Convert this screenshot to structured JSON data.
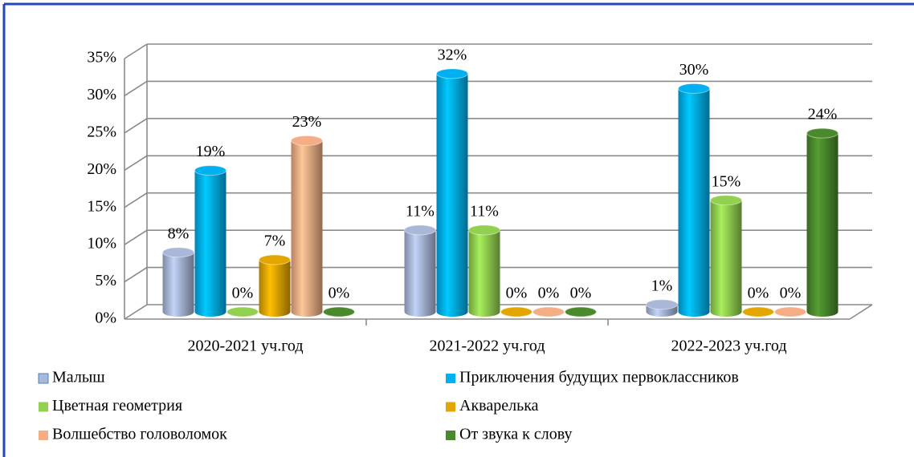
{
  "chart_data": {
    "type": "bar3d",
    "categories": [
      "2020-2021 уч.год",
      "2021-2022 уч.год",
      "2022-2023 уч.год"
    ],
    "series": [
      {
        "name": "Малыш",
        "color": "#a9b8d8",
        "values": [
          8,
          11,
          1
        ],
        "value_labels": [
          "8%",
          "11%",
          "1%"
        ]
      },
      {
        "name": "Приключения будущих первоклассников",
        "color": "#00b0f0",
        "values": [
          19,
          32,
          30
        ],
        "value_labels": [
          "19%",
          "32%",
          "30%"
        ]
      },
      {
        "name": "Цветная геометрия",
        "color": "#92d050",
        "values": [
          0,
          11,
          15
        ],
        "value_labels": [
          "0%",
          "11%",
          "15%"
        ]
      },
      {
        "name": "Акварелька",
        "color": "#e3a600",
        "values": [
          7,
          0,
          0
        ],
        "value_labels": [
          "7%",
          "0%",
          "0%"
        ]
      },
      {
        "name": "Волшебство головоломок",
        "color": "#f4ad84",
        "values": [
          23,
          0,
          0
        ],
        "value_labels": [
          "23%",
          "0%",
          "0%"
        ]
      },
      {
        "name": "От звука к слову",
        "color": "#4a8a2c",
        "values": [
          0,
          0,
          24
        ],
        "value_labels": [
          "0%",
          "0%",
          "24%"
        ]
      }
    ],
    "ylim": [
      0,
      35
    ],
    "yticks": [
      {
        "value": 0,
        "label": "0%"
      },
      {
        "value": 5,
        "label": "5%"
      },
      {
        "value": 10,
        "label": "10%"
      },
      {
        "value": 15,
        "label": "15%"
      },
      {
        "value": 20,
        "label": "20%"
      },
      {
        "value": 25,
        "label": "25%"
      },
      {
        "value": 30,
        "label": "30%"
      },
      {
        "value": 35,
        "label": "35%"
      }
    ],
    "grid": true,
    "legend": "bottom"
  }
}
